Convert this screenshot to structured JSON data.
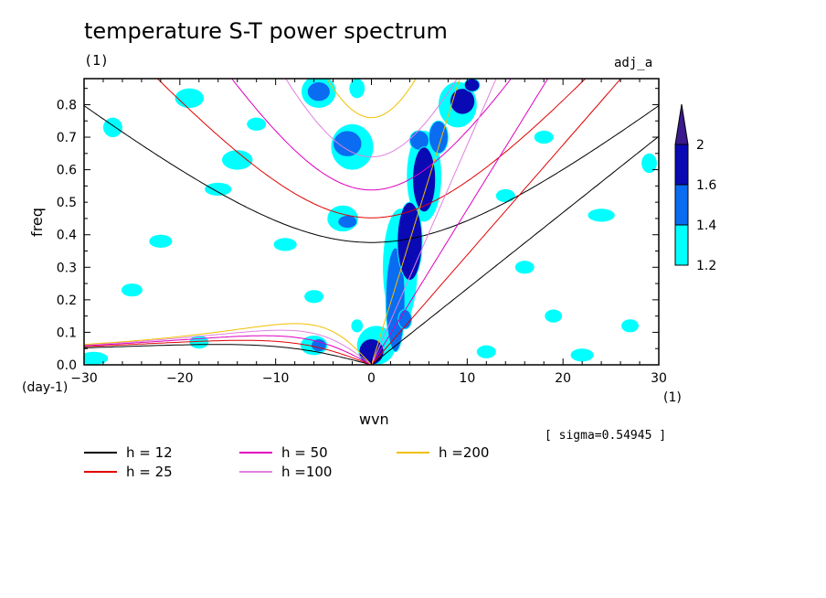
{
  "title": "temperature S-T power spectrum",
  "unit_label_top": "(1)",
  "dataset_label": "adj_a",
  "sigma_note": "[ sigma=0.54945 ]",
  "chart_data": {
    "type": "heatmap",
    "title": "temperature S-T power spectrum",
    "xlabel": "wvn",
    "ylabel": "freq",
    "x_unit": "(1)",
    "y_unit": "(day-1)",
    "xlim": [
      -30,
      30
    ],
    "ylim": [
      0,
      0.88
    ],
    "x_ticks": [
      -30,
      -20,
      -10,
      0,
      10,
      20,
      30
    ],
    "y_ticks": [
      0.0,
      0.1,
      0.2,
      0.3,
      0.4,
      0.5,
      0.6,
      0.7,
      0.8
    ],
    "grid": false,
    "colorbar": {
      "levels": [
        1.2,
        1.4,
        1.6,
        2
      ],
      "colors": [
        "#00ffff",
        "#0a6cf0",
        "#0a0ab4",
        "#3a1a8c"
      ]
    },
    "contour_regions": [
      {
        "x": 0,
        "y": 0.04,
        "rx": 1.3,
        "ry": 0.04,
        "level": 3
      },
      {
        "x": 2.5,
        "y": 0.2,
        "rx": 1.0,
        "ry": 0.16,
        "level": 2
      },
      {
        "x": 4,
        "y": 0.38,
        "rx": 1.3,
        "ry": 0.12,
        "level": 3
      },
      {
        "x": 5.5,
        "y": 0.57,
        "rx": 1.2,
        "ry": 0.1,
        "level": 3
      },
      {
        "x": 7,
        "y": 0.7,
        "rx": 1.0,
        "ry": 0.05,
        "level": 2
      },
      {
        "x": 9.5,
        "y": 0.81,
        "rx": 1.3,
        "ry": 0.04,
        "level": 3
      },
      {
        "x": 10.5,
        "y": 0.86,
        "rx": 0.8,
        "ry": 0.02,
        "level": 3
      },
      {
        "x": -5.5,
        "y": 0.84,
        "rx": 1.2,
        "ry": 0.03,
        "level": 2
      },
      {
        "x": -2.5,
        "y": 0.68,
        "rx": 1.5,
        "ry": 0.04,
        "level": 2
      },
      {
        "x": -2.5,
        "y": 0.44,
        "rx": 1.0,
        "ry": 0.02,
        "level": 2
      },
      {
        "x": 5,
        "y": 0.69,
        "rx": 1.0,
        "ry": 0.03,
        "level": 2
      },
      {
        "x": 3.5,
        "y": 0.14,
        "rx": 0.7,
        "ry": 0.03,
        "level": 2
      },
      {
        "x": -5.5,
        "y": 0.06,
        "rx": 0.8,
        "ry": 0.02,
        "level": 2
      },
      {
        "x": -1.5,
        "y": 0.12,
        "rx": 0.6,
        "ry": 0.02,
        "level": 1
      },
      {
        "x": 5.5,
        "y": 0.58,
        "rx": 1.8,
        "ry": 0.14,
        "level": 1
      },
      {
        "x": 3,
        "y": 0.3,
        "rx": 1.8,
        "ry": 0.18,
        "level": 1
      },
      {
        "x": 9,
        "y": 0.8,
        "rx": 2.0,
        "ry": 0.07,
        "level": 1
      },
      {
        "x": -2,
        "y": 0.67,
        "rx": 2.2,
        "ry": 0.07,
        "level": 1
      },
      {
        "x": -5.5,
        "y": 0.84,
        "rx": 1.8,
        "ry": 0.05,
        "level": 1
      },
      {
        "x": -1.5,
        "y": 0.85,
        "rx": 0.8,
        "ry": 0.03,
        "level": 1
      },
      {
        "x": -3,
        "y": 0.45,
        "rx": 1.6,
        "ry": 0.04,
        "level": 1
      },
      {
        "x": 0.5,
        "y": 0.06,
        "rx": 2.0,
        "ry": 0.06,
        "level": 1
      },
      {
        "x": -6,
        "y": 0.06,
        "rx": 1.4,
        "ry": 0.03,
        "level": 1
      },
      {
        "x": -19,
        "y": 0.82,
        "rx": 1.5,
        "ry": 0.03,
        "level": 1
      },
      {
        "x": -14,
        "y": 0.63,
        "rx": 1.6,
        "ry": 0.03,
        "level": 1
      },
      {
        "x": -16,
        "y": 0.54,
        "rx": 1.4,
        "ry": 0.02,
        "level": 1
      },
      {
        "x": -27,
        "y": 0.73,
        "rx": 1.0,
        "ry": 0.03,
        "level": 1
      },
      {
        "x": -22,
        "y": 0.38,
        "rx": 1.2,
        "ry": 0.02,
        "level": 1
      },
      {
        "x": -25,
        "y": 0.23,
        "rx": 1.1,
        "ry": 0.02,
        "level": 1
      },
      {
        "x": -29,
        "y": 0.02,
        "rx": 1.5,
        "ry": 0.02,
        "level": 1
      },
      {
        "x": -9,
        "y": 0.37,
        "rx": 1.2,
        "ry": 0.02,
        "level": 1
      },
      {
        "x": -6,
        "y": 0.21,
        "rx": 1.0,
        "ry": 0.02,
        "level": 1
      },
      {
        "x": 24,
        "y": 0.46,
        "rx": 1.4,
        "ry": 0.02,
        "level": 1
      },
      {
        "x": 29,
        "y": 0.62,
        "rx": 0.8,
        "ry": 0.03,
        "level": 1
      },
      {
        "x": 18,
        "y": 0.7,
        "rx": 1.0,
        "ry": 0.02,
        "level": 1
      },
      {
        "x": 16,
        "y": 0.3,
        "rx": 1.0,
        "ry": 0.02,
        "level": 1
      },
      {
        "x": 27,
        "y": 0.12,
        "rx": 0.9,
        "ry": 0.02,
        "level": 1
      },
      {
        "x": 22,
        "y": 0.03,
        "rx": 1.2,
        "ry": 0.02,
        "level": 1
      },
      {
        "x": 12,
        "y": 0.04,
        "rx": 1.0,
        "ry": 0.02,
        "level": 1
      },
      {
        "x": -18,
        "y": 0.07,
        "rx": 1.0,
        "ry": 0.02,
        "level": 1
      },
      {
        "x": 19,
        "y": 0.15,
        "rx": 0.9,
        "ry": 0.02,
        "level": 1
      },
      {
        "x": -12,
        "y": 0.74,
        "rx": 1.0,
        "ry": 0.02,
        "level": 1
      },
      {
        "x": 14,
        "y": 0.52,
        "rx": 1.0,
        "ry": 0.02,
        "level": 1
      }
    ],
    "series": [
      {
        "name": "h = 12",
        "color": "#000000",
        "h": 12
      },
      {
        "name": "h = 25",
        "color": "#e00000",
        "h": 25
      },
      {
        "name": "h = 50",
        "color": "#e000c0",
        "h": 50
      },
      {
        "name": "h =100",
        "color": "#e080e0",
        "h": 100
      },
      {
        "name": "h =200",
        "color": "#f0c000",
        "h": 200
      }
    ]
  }
}
